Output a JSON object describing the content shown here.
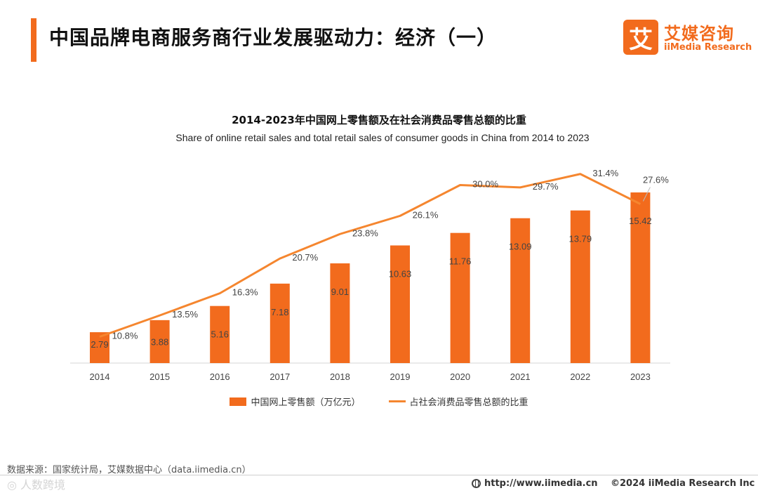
{
  "header": {
    "title": "中国品牌电商服务商行业发展驱动力：经济（一）",
    "accent_color": "#f26b1d"
  },
  "logo": {
    "mark": "艾",
    "name_cn": "艾媒咨询",
    "name_en": "iiMedia Research"
  },
  "chart_data": {
    "type": "bar",
    "title": "2014-2023年中国网上零售额及在社会消费品零售总额的比重",
    "subtitle": "Share of online retail sales and total retail sales of consumer goods in China  from 2014 to 2023",
    "categories": [
      "2014",
      "2015",
      "2016",
      "2017",
      "2018",
      "2019",
      "2020",
      "2021",
      "2022",
      "2023"
    ],
    "series": [
      {
        "name": "中国网上零售额（万亿元）",
        "kind": "bar",
        "color": "#f26b1d",
        "values": [
          2.79,
          3.88,
          5.16,
          7.18,
          9.01,
          10.63,
          11.76,
          13.09,
          13.79,
          15.42
        ],
        "labels": [
          "2.79",
          "3.88",
          "5.16",
          "7.18",
          "9.01",
          "10.63",
          "11.76",
          "13.09",
          "13.79",
          "15.42"
        ]
      },
      {
        "name": "占社会消费品零售总额的比重",
        "kind": "line",
        "color": "#f5862f",
        "values": [
          10.8,
          13.5,
          16.3,
          20.7,
          23.8,
          26.1,
          30.0,
          29.7,
          31.4,
          27.6
        ],
        "labels": [
          "10.8%",
          "13.5%",
          "16.3%",
          "20.7%",
          "23.8%",
          "26.1%",
          "30.0%",
          "29.7%",
          "31.4%",
          "27.6%"
        ]
      }
    ],
    "ylim": [
      0,
      17.3
    ],
    "y2lim": [
      0,
      37
    ],
    "grid": false,
    "legend_position": "bottom"
  },
  "footer": {
    "source": "数据来源：国家统计局，艾媒数据中心（data.iimedia.cn）",
    "watermark": "◎ 人数跨境",
    "url": "http://www.iimedia.cn",
    "copyright": "©2024  iiMedia Research  Inc"
  }
}
